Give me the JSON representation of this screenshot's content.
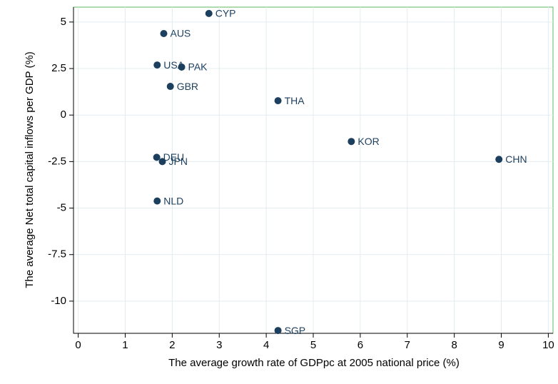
{
  "chart_data": {
    "type": "scatter",
    "xlabel": "The average growth rate of GDPpc at 2005 national price (%)",
    "ylabel": "The average Net total capital inflows per GDP (%)",
    "labels": [
      "CYP",
      "AUS",
      "USA",
      "PAK",
      "GBR",
      "THA",
      "KOR",
      "CHN",
      "DEU",
      "JPN",
      "NLD",
      "SGP"
    ],
    "x": [
      2.78,
      1.82,
      1.68,
      2.2,
      1.96,
      4.25,
      5.81,
      8.95,
      1.67,
      1.79,
      1.68,
      4.25
    ],
    "y": [
      5.46,
      4.38,
      2.69,
      2.58,
      1.54,
      0.77,
      -1.42,
      -2.38,
      -2.27,
      -2.5,
      -4.62,
      -11.58
    ],
    "color": "#1c3f5e",
    "xlim": [
      -0.1,
      10.1
    ],
    "ylim": [
      -11.73,
      5.8
    ],
    "xticks": [
      0,
      1,
      2,
      3,
      4,
      5,
      6,
      7,
      8,
      9,
      10
    ],
    "yticks": [
      5,
      2.5,
      0,
      -2.5,
      -5,
      -7.5,
      -10
    ],
    "grid": true
  }
}
